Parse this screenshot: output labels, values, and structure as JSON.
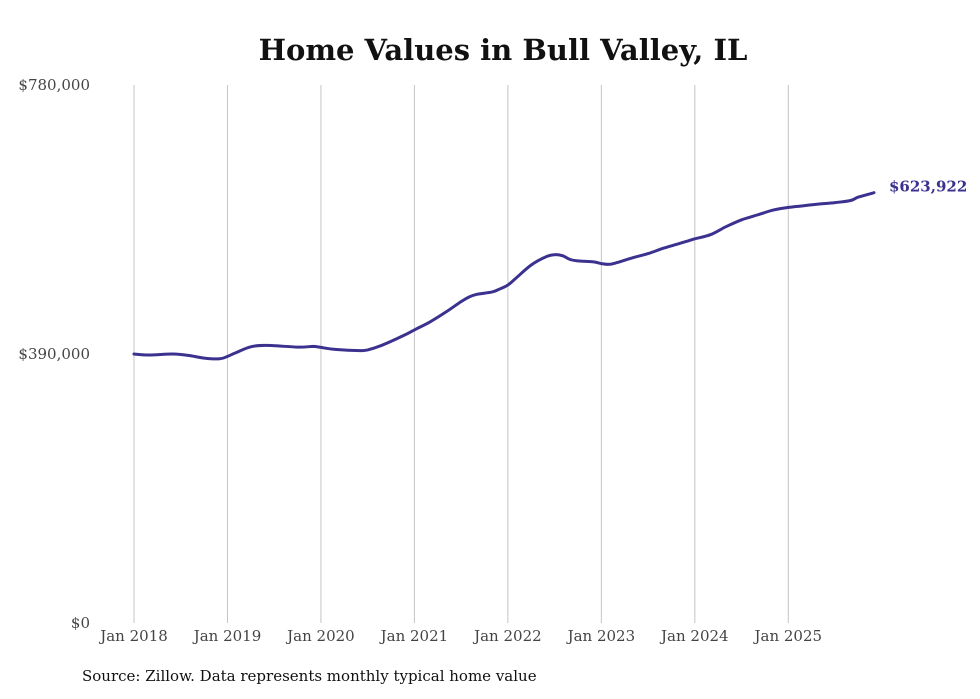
{
  "chart_data": {
    "type": "line",
    "title": "Home Values in Bull Valley, IL",
    "source": "Source: Zillow. Data represents monthly typical home value",
    "xlabel": "",
    "ylabel": "",
    "ylim": [
      0,
      780000
    ],
    "y_ticks": [
      {
        "value": 0,
        "label": "$0"
      },
      {
        "value": 390000,
        "label": "$390,000"
      },
      {
        "value": 780000,
        "label": "$780,000"
      }
    ],
    "x_ticks": [
      {
        "value": 2018,
        "label": "Jan 2018"
      },
      {
        "value": 2019,
        "label": "Jan 2019"
      },
      {
        "value": 2020,
        "label": "Jan 2020"
      },
      {
        "value": 2021,
        "label": "Jan 2021"
      },
      {
        "value": 2022,
        "label": "Jan 2022"
      },
      {
        "value": 2023,
        "label": "Jan 2023"
      },
      {
        "value": 2024,
        "label": "Jan 2024"
      },
      {
        "value": 2025,
        "label": "Jan 2025"
      }
    ],
    "xlim": [
      2018,
      2025.917
    ],
    "grid": "vertical",
    "line_color": "#3b3290",
    "end_label": "$623,922",
    "series": [
      {
        "name": "Typical home value",
        "x": [
          2018.0,
          2018.167,
          2018.417,
          2018.583,
          2018.75,
          2018.917,
          2019.0,
          2019.083,
          2019.25,
          2019.417,
          2019.75,
          2019.917,
          2020.0,
          2020.167,
          2020.417,
          2020.5,
          2020.667,
          2020.917,
          2021.0,
          2021.167,
          2021.333,
          2021.5,
          2021.583,
          2021.667,
          2021.833,
          2021.917,
          2022.0,
          2022.083,
          2022.25,
          2022.417,
          2022.5,
          2022.583,
          2022.667,
          2022.75,
          2022.917,
          2023.0,
          2023.083,
          2023.167,
          2023.333,
          2023.5,
          2023.667,
          2023.833,
          2023.917,
          2024.0,
          2024.167,
          2024.333,
          2024.5,
          2024.667,
          2024.833,
          2025.0,
          2025.167,
          2025.333,
          2025.5,
          2025.667,
          2025.75,
          2025.917
        ],
        "values": [
          390000,
          388500,
          390000,
          388000,
          384000,
          383000,
          386500,
          391500,
          400500,
          402500,
          400000,
          401000,
          399500,
          396500,
          395000,
          396000,
          403500,
          419000,
          425000,
          436500,
          450500,
          466000,
          472500,
          476500,
          480000,
          484500,
          490000,
          499500,
          519000,
          531500,
          534000,
          532500,
          527000,
          525000,
          523500,
          521000,
          520000,
          522500,
          529500,
          535500,
          543500,
          550000,
          553500,
          557000,
          563000,
          574500,
          584500,
          591500,
          598500,
          602500,
          605000,
          607500,
          609500,
          612500,
          617500,
          623922
        ]
      }
    ]
  }
}
